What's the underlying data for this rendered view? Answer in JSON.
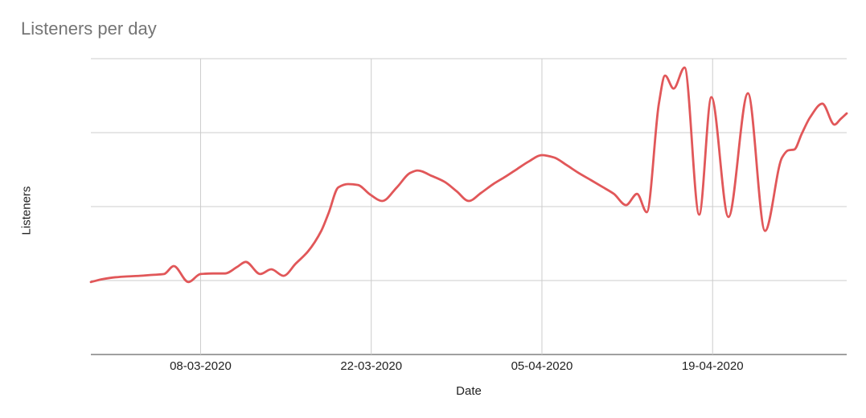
{
  "chart": {
    "title": "Listeners per day",
    "x_axis": {
      "title": "Date"
    },
    "y_axis": {
      "title": "Listeners",
      "tick_labels_visible": false
    }
  },
  "chart_data": {
    "type": "line",
    "title": "Listeners per day",
    "xlabel": "Date",
    "ylabel": "Listeners",
    "x_unit": "days (day 0 = left edge, approx 28-02-2020; 15.16 px/day)",
    "x_range_days": [
      0,
      62
    ],
    "x_ticks": [
      {
        "day": 9,
        "label": "08-03-2020"
      },
      {
        "day": 23,
        "label": "22-03-2020"
      },
      {
        "day": 37,
        "label": "05-04-2020"
      },
      {
        "day": 51,
        "label": "19-04-2020"
      }
    ],
    "y_axis_unlabeled": true,
    "y_value_scale": "relative units, 0 = x-axis baseline, 100 = top gridline",
    "ylim": [
      0,
      100
    ],
    "gridline_values": [
      0,
      25,
      50,
      75,
      100
    ],
    "grid": true,
    "legend_position": "none",
    "smooth": true,
    "series": [
      {
        "name": "Listeners",
        "color": "#E15759",
        "points": [
          [
            0,
            24.5
          ],
          [
            1,
            25.5
          ],
          [
            2,
            26.1
          ],
          [
            3,
            26.4
          ],
          [
            4,
            26.6
          ],
          [
            5,
            26.9
          ],
          [
            6,
            27.2
          ],
          [
            6.8,
            29.9
          ],
          [
            8,
            24.5
          ],
          [
            9,
            27.2
          ],
          [
            10,
            27.4
          ],
          [
            11,
            27.4
          ],
          [
            12,
            29.6
          ],
          [
            12.7,
            31.3
          ],
          [
            13.9,
            27.2
          ],
          [
            14.8,
            28.8
          ],
          [
            15.8,
            26.6
          ],
          [
            16.8,
            30.7
          ],
          [
            17.8,
            34.8
          ],
          [
            18.9,
            41.8
          ],
          [
            19.5,
            47.8
          ],
          [
            20.3,
            56.5
          ],
          [
            21.1,
            57.6
          ],
          [
            21.9,
            57.3
          ],
          [
            22.9,
            54.1
          ],
          [
            23.9,
            51.9
          ],
          [
            25.1,
            56.5
          ],
          [
            26.2,
            61.4
          ],
          [
            26.8,
            62.2
          ],
          [
            28,
            60.3
          ],
          [
            29,
            58.4
          ],
          [
            30,
            55.2
          ],
          [
            31,
            51.9
          ],
          [
            32,
            54.6
          ],
          [
            33,
            57.6
          ],
          [
            34,
            60.1
          ],
          [
            35,
            62.8
          ],
          [
            35.9,
            65.2
          ],
          [
            37,
            67.4
          ],
          [
            38,
            66.6
          ],
          [
            39,
            64.1
          ],
          [
            40,
            61.4
          ],
          [
            41,
            59
          ],
          [
            41.9,
            56.8
          ],
          [
            42.9,
            54.3
          ],
          [
            43.9,
            50.5
          ],
          [
            44.8,
            54.3
          ],
          [
            45.6,
            48.1
          ],
          [
            46.6,
            85
          ],
          [
            47.1,
            94.3
          ],
          [
            47.8,
            89.9
          ],
          [
            48.7,
            97
          ],
          [
            49.9,
            47.3
          ],
          [
            50.9,
            87
          ],
          [
            52.3,
            46.5
          ],
          [
            53.9,
            88.3
          ],
          [
            55.3,
            41.8
          ],
          [
            56.7,
            66.6
          ],
          [
            57.2,
            69
          ],
          [
            57.7,
            69.3
          ],
          [
            58.3,
            74.5
          ],
          [
            59,
            80.2
          ],
          [
            60,
            84.8
          ],
          [
            61,
            77.7
          ],
          [
            61.5,
            79.6
          ],
          [
            62,
            81.5
          ]
        ]
      }
    ],
    "colors": {
      "line": "#E15759",
      "gridline": "#CCCCCC",
      "axis_line": "#424242",
      "title_text": "#757575",
      "tick_text": "#222222",
      "background": "#FFFFFF"
    }
  }
}
